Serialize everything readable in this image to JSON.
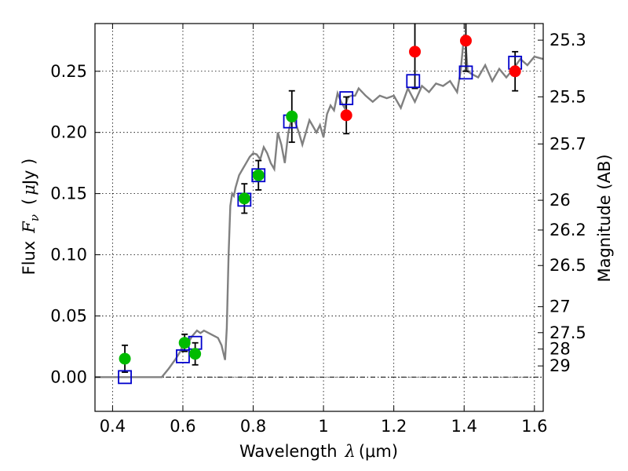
{
  "chart_data": {
    "type": "scatter",
    "xlabel_text": "Wavelength",
    "xlabel_symbol": "λ",
    "xlabel_unit": "(μm)",
    "ylabel_text": "Flux",
    "ylabel_symbol": "F",
    "ylabel_subscript": "ν",
    "ylabel_unit_open": "(",
    "ylabel_unit_symbol": "μ",
    "ylabel_unit_close": "Jy )",
    "y2label": "Magnitude (AB)",
    "xlim": [
      0.35,
      1.625
    ],
    "ylim": [
      -0.028,
      0.289
    ],
    "grid": true,
    "x_ticks": [
      {
        "value": 0.4,
        "label": "0.4"
      },
      {
        "value": 0.6,
        "label": "0.6"
      },
      {
        "value": 0.8,
        "label": "0.8"
      },
      {
        "value": 1.0,
        "label": "1"
      },
      {
        "value": 1.2,
        "label": "1.2"
      },
      {
        "value": 1.4,
        "label": "1.4"
      },
      {
        "value": 1.6,
        "label": "1.6"
      }
    ],
    "y_ticks": [
      {
        "value": 0.0,
        "label": "0.00"
      },
      {
        "value": 0.05,
        "label": "0.05"
      },
      {
        "value": 0.1,
        "label": "0.10"
      },
      {
        "value": 0.15,
        "label": "0.15"
      },
      {
        "value": 0.2,
        "label": "0.20"
      },
      {
        "value": 0.25,
        "label": "0.25"
      }
    ],
    "y2_ticks": [
      {
        "value": 25.3,
        "label": "25.3"
      },
      {
        "value": 25.5,
        "label": "25.5"
      },
      {
        "value": 25.7,
        "label": "25.7"
      },
      {
        "value": 26.0,
        "label": "26"
      },
      {
        "value": 26.2,
        "label": "26.2"
      },
      {
        "value": 26.5,
        "label": "26.5"
      },
      {
        "value": 27.0,
        "label": "27"
      },
      {
        "value": 27.5,
        "label": "27.5"
      },
      {
        "value": 28.0,
        "label": "28"
      },
      {
        "value": 29.0,
        "label": "29"
      }
    ],
    "model_spectrum": {
      "color": "#808080",
      "x": [
        0.35,
        0.54,
        0.56,
        0.58,
        0.595,
        0.6,
        0.61,
        0.625,
        0.64,
        0.65,
        0.66,
        0.68,
        0.7,
        0.71,
        0.72,
        0.725,
        0.73,
        0.735,
        0.74,
        0.745,
        0.75,
        0.76,
        0.77,
        0.78,
        0.79,
        0.8,
        0.81,
        0.82,
        0.83,
        0.84,
        0.85,
        0.86,
        0.87,
        0.88,
        0.89,
        0.9,
        0.91,
        0.92,
        0.93,
        0.94,
        0.95,
        0.96,
        0.97,
        0.98,
        0.99,
        1.0,
        1.01,
        1.02,
        1.03,
        1.04,
        1.05,
        1.06,
        1.07,
        1.08,
        1.09,
        1.1,
        1.12,
        1.14,
        1.16,
        1.18,
        1.2,
        1.22,
        1.24,
        1.26,
        1.28,
        1.3,
        1.32,
        1.34,
        1.36,
        1.38,
        1.39,
        1.4,
        1.405,
        1.41,
        1.42,
        1.44,
        1.46,
        1.48,
        1.5,
        1.52,
        1.54,
        1.56,
        1.58,
        1.6,
        1.625
      ],
      "y": [
        0.0,
        0.0,
        0.007,
        0.015,
        0.022,
        0.03,
        0.025,
        0.033,
        0.038,
        0.036,
        0.038,
        0.035,
        0.032,
        0.026,
        0.014,
        0.04,
        0.1,
        0.14,
        0.15,
        0.148,
        0.155,
        0.165,
        0.17,
        0.175,
        0.18,
        0.183,
        0.182,
        0.178,
        0.188,
        0.183,
        0.175,
        0.17,
        0.2,
        0.19,
        0.175,
        0.2,
        0.212,
        0.208,
        0.2,
        0.19,
        0.2,
        0.21,
        0.205,
        0.2,
        0.206,
        0.196,
        0.215,
        0.222,
        0.218,
        0.232,
        0.225,
        0.22,
        0.229,
        0.23,
        0.23,
        0.236,
        0.23,
        0.225,
        0.23,
        0.228,
        0.23,
        0.22,
        0.236,
        0.225,
        0.238,
        0.233,
        0.24,
        0.238,
        0.242,
        0.233,
        0.25,
        0.28,
        0.27,
        0.25,
        0.248,
        0.245,
        0.255,
        0.242,
        0.252,
        0.245,
        0.252,
        0.26,
        0.255,
        0.262,
        0.26
      ]
    },
    "series": [
      {
        "marker": "square-open",
        "color": "#0000cc",
        "points": [
          {
            "x": 0.435,
            "y": 0.0
          },
          {
            "x": 0.6,
            "y": 0.017
          },
          {
            "x": 0.635,
            "y": 0.028
          },
          {
            "x": 0.775,
            "y": 0.145
          },
          {
            "x": 0.815,
            "y": 0.165
          },
          {
            "x": 0.905,
            "y": 0.209
          },
          {
            "x": 1.065,
            "y": 0.228
          },
          {
            "x": 1.255,
            "y": 0.242
          },
          {
            "x": 1.405,
            "y": 0.249
          },
          {
            "x": 1.545,
            "y": 0.257
          }
        ]
      },
      {
        "marker": "circle",
        "color": "#00bb00",
        "points": [
          {
            "x": 0.435,
            "y": 0.015,
            "err": 0.011
          },
          {
            "x": 0.605,
            "y": 0.028,
            "err": 0.007
          },
          {
            "x": 0.635,
            "y": 0.019,
            "err": 0.009
          },
          {
            "x": 0.775,
            "y": 0.146,
            "err": 0.012
          },
          {
            "x": 0.815,
            "y": 0.165,
            "err": 0.012
          },
          {
            "x": 0.91,
            "y": 0.213,
            "err": 0.021
          }
        ]
      },
      {
        "marker": "circle",
        "color": "#ff0000",
        "points": [
          {
            "x": 1.065,
            "y": 0.214,
            "err": 0.015
          },
          {
            "x": 1.26,
            "y": 0.266,
            "err": 0.03
          },
          {
            "x": 1.405,
            "y": 0.275,
            "err": 0.025
          },
          {
            "x": 1.545,
            "y": 0.25,
            "err": 0.016
          }
        ]
      }
    ]
  }
}
